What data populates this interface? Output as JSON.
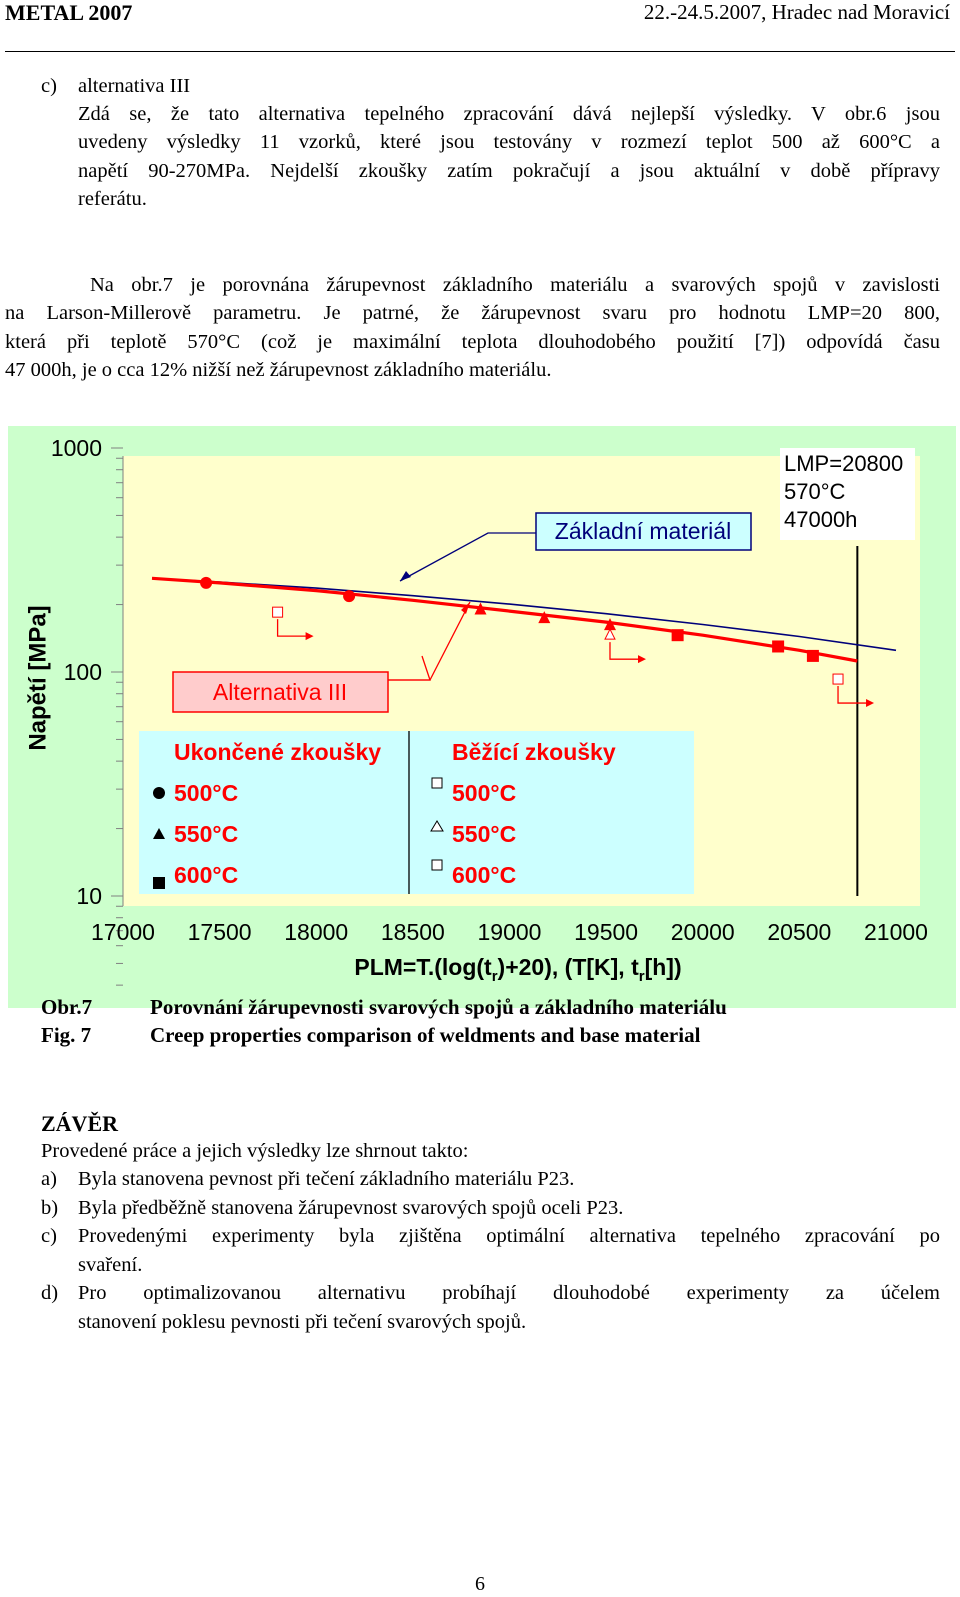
{
  "header": {
    "left": "METAL 2007",
    "right": "22.-24.5.2007, Hradec nad Moravicí"
  },
  "section_c": {
    "label": "c)",
    "title": "alternativa III",
    "lines": [
      "Zdá se, že tato alternativa tepelného zpracování dává nejlepší výsledky. V obr.6 jsou",
      "uvedeny výsledky 11 vzorků, které jsou testovány v rozmezí teplot 500 až 600°C a",
      "napětí 90-270MPa. Nejdelší zkoušky zatím pokračují a jsou aktuální v době přípravy",
      "referátu."
    ]
  },
  "para2": {
    "lines": [
      "Na obr.7 je porovnána žárupevnost základního materiálu a svarových spojů v zavislosti",
      "na Larson-Millerově parametru. Je patrné, že žárupevnost svaru pro hodnotu LMP=20 800,",
      "která při teplotě 570°C (což je maximální teplota dlouhodobého použití [7]) odpovídá času",
      "47 000h, je o cca 12% nižší než žárupevnost základního materiálu."
    ]
  },
  "chart_data": {
    "type": "scatter",
    "xlabel": "PLM=T.(log(t",
    "xlabel_parts": [
      "PLM=T.(log(t",
      "r",
      ")+20), (T[K], t",
      "r",
      "[h])"
    ],
    "ylabel": "Napětí [MPa]",
    "xlim": [
      17000,
      21000
    ],
    "ylim": [
      10,
      1000
    ],
    "yscale": "log",
    "x_ticks": [
      "17000",
      "17500",
      "18000",
      "18500",
      "19000",
      "19500",
      "20000",
      "20500",
      "21000"
    ],
    "y_ticks": [
      "10",
      "100",
      "1000"
    ],
    "grid": false,
    "colors": {
      "plot_bg": "#ffffcc",
      "outer_bg": "#ccffcc",
      "legend_bg": "#ccffff",
      "data": "#ff0000",
      "base_line": "#00007a",
      "label_box": "#ffcccc"
    },
    "series": [
      {
        "name": "Ukončené zkoušky 500°C",
        "marker": "circle-filled",
        "x": [
          17430,
          18170
        ],
        "y": [
          250,
          218
        ]
      },
      {
        "name": "Ukončené zkoušky 550°C",
        "marker": "triangle-filled",
        "x": [
          18850,
          19180,
          19520
        ],
        "y": [
          190,
          174,
          162
        ]
      },
      {
        "name": "Ukončené zkoušky 600°C",
        "marker": "square-filled",
        "x": [
          19870,
          20390,
          20570
        ],
        "y": [
          146,
          130,
          118
        ]
      },
      {
        "name": "Běžící zkoušky 500°C",
        "marker": "square-open",
        "x": [
          17800
        ],
        "y": [
          185
        ]
      },
      {
        "name": "Běžící zkoušky 550°C",
        "marker": "triangle-open",
        "x": [
          19520
        ],
        "y": [
          146
        ]
      },
      {
        "name": "Běžící zkoušky 600°C",
        "marker": "square-open",
        "x": [
          20700
        ],
        "y": [
          93
        ]
      }
    ],
    "weld_curve": {
      "x": [
        17150,
        17500,
        18000,
        18500,
        19000,
        19500,
        20000,
        20500,
        20800
      ],
      "y": [
        262,
        250,
        231,
        209,
        187,
        167,
        146,
        125,
        112
      ]
    },
    "base_curve": {
      "x": [
        17150,
        17500,
        18000,
        18500,
        19000,
        19500,
        20000,
        20500,
        21000
      ],
      "y": [
        262,
        252,
        237,
        219,
        201,
        182,
        163,
        144,
        125
      ]
    },
    "vline_x": 20800,
    "annotations": {
      "base": "Základní materiál",
      "lmp": [
        "LMP=20800",
        "570°C",
        "47000h"
      ],
      "alt": "Alternativa III",
      "legend_done": "Ukončené zkoušky",
      "legend_running": "Běžící zkoušky",
      "t500": "500°C",
      "t550": "550°C",
      "t600": "600°C"
    }
  },
  "caption": {
    "cz_label": "Obr.7",
    "cz_text": "Porovnání žárupevnosti svarových spojů a základního materiálu",
    "en_label": "Fig. 7",
    "en_text": "Creep properties comparison of weldments and base material"
  },
  "conclusion": {
    "heading": "ZÁVĚR",
    "intro": "Provedené práce a jejich výsledky lze shrnout takto:",
    "items": [
      {
        "k": "a)",
        "lines": [
          "Byla stanovena pevnost při tečení základního materiálu P23."
        ]
      },
      {
        "k": "b)",
        "lines": [
          "Byla předběžně stanovena žárupevnost svarových spojů oceli P23."
        ]
      },
      {
        "k": "c)",
        "lines": [
          "Provedenými experimenty byla zjištěna optimální alternativa tepelného zpracování po",
          "svaření."
        ]
      },
      {
        "k": "d)",
        "lines": [
          "Pro optimalizovanou alternativu probíhají dlouhodobé experimenty za účelem",
          "stanovení poklesu pevnosti při tečení svarových spojů."
        ]
      }
    ]
  },
  "page_number": "6"
}
